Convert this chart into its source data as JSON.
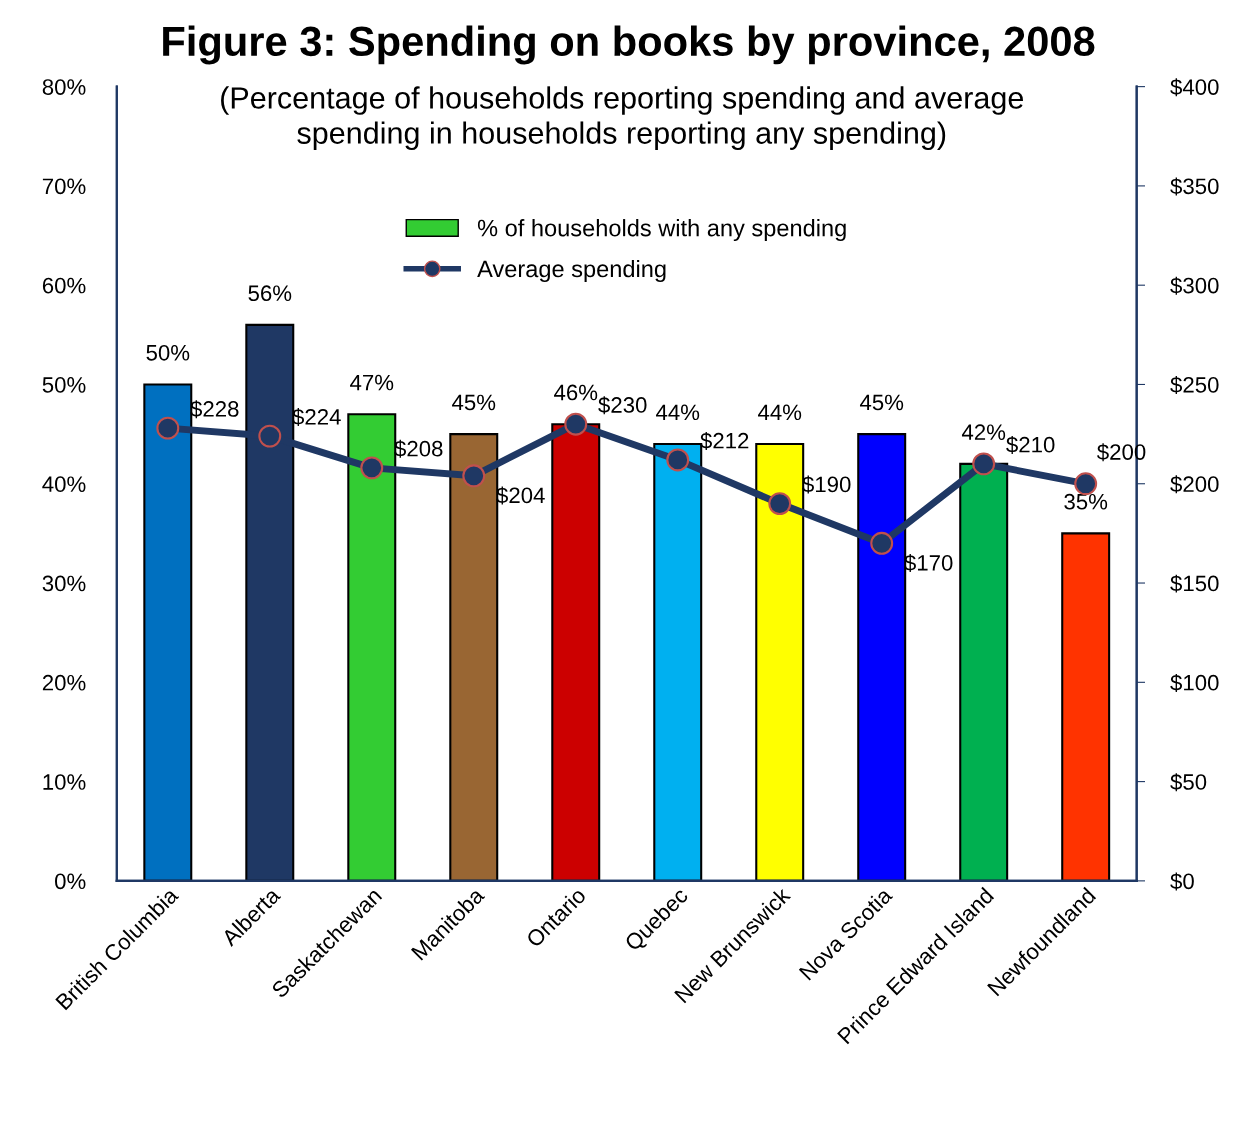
{
  "chart_data": {
    "type": "bar",
    "title": "Figure 3: Spending on books by province, 2008",
    "subtitle": "(Percentage of households reporting spending and average spending in households reporting any spending)",
    "categories": [
      "British Columbia",
      "Alberta",
      "Saskatchewan",
      "Manitoba",
      "Ontario",
      "Quebec",
      "New Brunswick",
      "Nova Scotia",
      "Prince Edward Island",
      "Newfoundland"
    ],
    "series": [
      {
        "name": "% of households with any spending",
        "color": "#33cc33",
        "colors": [
          "#0070c0",
          "#1f3864",
          "#33cc33",
          "#996633",
          "#cc0000",
          "#00b0f0",
          "#ffff00",
          "#0000ff",
          "#00b050",
          "#ff3300"
        ],
        "values": [
          50,
          56,
          47,
          45,
          46,
          44,
          44,
          45,
          42,
          35
        ],
        "value_labels": [
          "50%",
          "56%",
          "47%",
          "45%",
          "46%",
          "44%",
          "44%",
          "45%",
          "42%",
          "35%"
        ]
      },
      {
        "name": "Average spending",
        "type": "line",
        "axis": "y2",
        "color": "#1f3864",
        "marker": "circle",
        "line_style": "solid",
        "values": [
          228,
          224,
          208,
          204,
          230,
          212,
          190,
          170,
          210,
          200
        ],
        "value_labels": [
          "$228",
          "$224",
          "$208",
          "$204",
          "$230",
          "$212",
          "$190",
          "$170",
          "$210",
          "$200"
        ]
      }
    ],
    "ylim": [
      0,
      80
    ],
    "yticks": [
      {
        "value": 0,
        "label": "0%"
      },
      {
        "value": 10,
        "label": "10%"
      },
      {
        "value": 20,
        "label": "20%"
      },
      {
        "value": 30,
        "label": "30%"
      },
      {
        "value": 40,
        "label": "40%"
      },
      {
        "value": 50,
        "label": "50%"
      },
      {
        "value": 60,
        "label": "60%"
      },
      {
        "value": 70,
        "label": "70%"
      },
      {
        "value": 80,
        "label": "80%"
      }
    ],
    "y2lim": [
      0,
      400
    ],
    "y2ticks": [
      {
        "value": 0,
        "label": "$0"
      },
      {
        "value": 50,
        "label": "$50"
      },
      {
        "value": 100,
        "label": "$100"
      },
      {
        "value": 150,
        "label": "$150"
      },
      {
        "value": 200,
        "label": "$200"
      },
      {
        "value": 250,
        "label": "$250"
      },
      {
        "value": 300,
        "label": "$300"
      },
      {
        "value": 350,
        "label": "$350"
      },
      {
        "value": 400,
        "label": "$400"
      }
    ],
    "grid": false,
    "legend": "top"
  }
}
